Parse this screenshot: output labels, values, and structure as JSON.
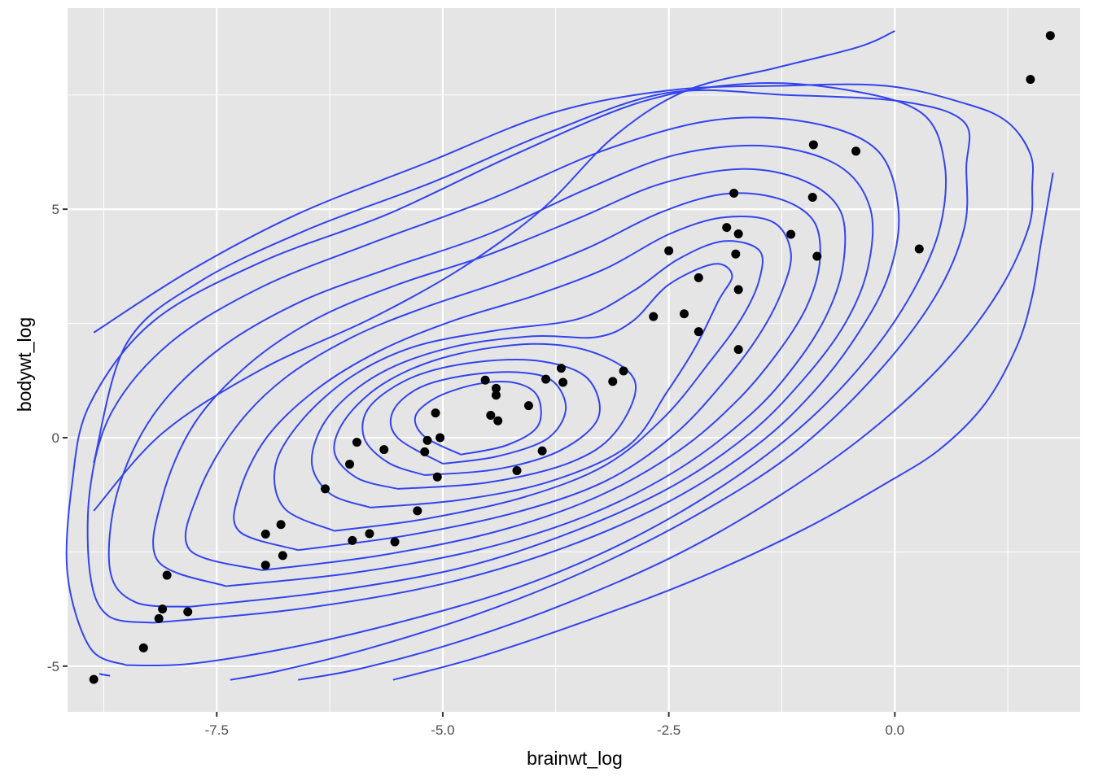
{
  "chart_data": {
    "type": "scatter",
    "title": "",
    "xlabel": "brainwt_log",
    "ylabel": "bodywt_log",
    "xlim": [
      -9.15,
      2.05
    ],
    "ylim": [
      -6.0,
      9.4
    ],
    "x_ticks": [
      {
        "value": -7.5,
        "label": "-7.5"
      },
      {
        "value": -5.0,
        "label": "-5.0"
      },
      {
        "value": -2.5,
        "label": "-2.5"
      },
      {
        "value": 0.0,
        "label": "0.0"
      }
    ],
    "y_ticks": [
      {
        "value": -5,
        "label": "-5"
      },
      {
        "value": 0,
        "label": "0"
      },
      {
        "value": 5,
        "label": "5"
      }
    ],
    "grid": true,
    "legend": "none",
    "colors": {
      "panel": "#e5e5e5",
      "grid": "#ffffff",
      "points": "#000000",
      "contours": "#3344ee"
    },
    "points": [
      {
        "x": -8.86,
        "y": -5.29
      },
      {
        "x": -8.31,
        "y": -4.6
      },
      {
        "x": -8.14,
        "y": -3.96
      },
      {
        "x": -8.1,
        "y": -3.75
      },
      {
        "x": -8.05,
        "y": -3.01
      },
      {
        "x": -7.82,
        "y": -3.81
      },
      {
        "x": -6.96,
        "y": -2.11
      },
      {
        "x": -6.96,
        "y": -2.79
      },
      {
        "x": -6.79,
        "y": -1.9
      },
      {
        "x": -6.77,
        "y": -2.58
      },
      {
        "x": -6.3,
        "y": -1.12
      },
      {
        "x": -6.03,
        "y": -0.58
      },
      {
        "x": -6.0,
        "y": -2.25
      },
      {
        "x": -5.95,
        "y": -0.1
      },
      {
        "x": -5.81,
        "y": -2.1
      },
      {
        "x": -5.65,
        "y": -0.26
      },
      {
        "x": -5.53,
        "y": -2.28
      },
      {
        "x": -5.28,
        "y": -1.6
      },
      {
        "x": -5.2,
        "y": -0.31
      },
      {
        "x": -5.17,
        "y": -0.06
      },
      {
        "x": -5.08,
        "y": 0.54
      },
      {
        "x": -5.06,
        "y": -0.86
      },
      {
        "x": -5.03,
        "y": 0.0
      },
      {
        "x": -4.53,
        "y": 1.26
      },
      {
        "x": -4.47,
        "y": 0.49
      },
      {
        "x": -4.41,
        "y": 1.08
      },
      {
        "x": -4.41,
        "y": 0.93
      },
      {
        "x": -4.39,
        "y": 0.37
      },
      {
        "x": -4.18,
        "y": -0.72
      },
      {
        "x": -4.05,
        "y": 0.7
      },
      {
        "x": -3.9,
        "y": -0.29
      },
      {
        "x": -3.86,
        "y": 1.28
      },
      {
        "x": -3.69,
        "y": 1.52
      },
      {
        "x": -3.67,
        "y": 1.21
      },
      {
        "x": -3.12,
        "y": 1.23
      },
      {
        "x": -3.0,
        "y": 1.46
      },
      {
        "x": -2.67,
        "y": 2.65
      },
      {
        "x": -2.5,
        "y": 4.09
      },
      {
        "x": -2.33,
        "y": 2.71
      },
      {
        "x": -2.17,
        "y": 3.5
      },
      {
        "x": -2.17,
        "y": 2.32
      },
      {
        "x": -1.86,
        "y": 4.6
      },
      {
        "x": -1.78,
        "y": 5.35
      },
      {
        "x": -1.76,
        "y": 4.02
      },
      {
        "x": -1.73,
        "y": 4.46
      },
      {
        "x": -1.73,
        "y": 3.24
      },
      {
        "x": -1.73,
        "y": 1.93
      },
      {
        "x": -1.15,
        "y": 4.45
      },
      {
        "x": -0.9,
        "y": 6.41
      },
      {
        "x": -0.91,
        "y": 5.26
      },
      {
        "x": -0.86,
        "y": 3.97
      },
      {
        "x": -0.43,
        "y": 6.27
      },
      {
        "x": 0.27,
        "y": 4.13
      },
      {
        "x": 1.5,
        "y": 7.84
      },
      {
        "x": 1.72,
        "y": 8.8
      }
    ],
    "contours": [
      [
        [
          -4.8,
          -0.37
        ],
        [
          -4.3,
          -0.17
        ],
        [
          -3.95,
          0.25
        ],
        [
          -3.95,
          0.9
        ],
        [
          -4.2,
          1.2
        ],
        [
          -4.6,
          1.18
        ],
        [
          -5.05,
          0.9
        ],
        [
          -5.3,
          0.48
        ],
        [
          -5.2,
          0.02
        ],
        [
          -4.8,
          -0.37
        ]
      ],
      [
        [
          -5.0,
          -0.57
        ],
        [
          -4.4,
          -0.41
        ],
        [
          -3.85,
          -0.03
        ],
        [
          -3.64,
          0.61
        ],
        [
          -3.78,
          1.23
        ],
        [
          -4.15,
          1.43
        ],
        [
          -4.72,
          1.37
        ],
        [
          -5.25,
          1.1
        ],
        [
          -5.55,
          0.58
        ],
        [
          -5.5,
          0.0
        ],
        [
          -5.0,
          -0.57
        ]
      ],
      [
        [
          -5.2,
          -0.82
        ],
        [
          -4.4,
          -0.69
        ],
        [
          -3.7,
          -0.28
        ],
        [
          -3.28,
          0.44
        ],
        [
          -3.4,
          1.3
        ],
        [
          -3.9,
          1.67
        ],
        [
          -4.6,
          1.66
        ],
        [
          -5.3,
          1.35
        ],
        [
          -5.8,
          0.7
        ],
        [
          -5.87,
          0.0
        ],
        [
          -5.6,
          -0.55
        ],
        [
          -5.2,
          -0.82
        ]
      ],
      [
        [
          -5.5,
          -1.12
        ],
        [
          -4.5,
          -0.98
        ],
        [
          -3.6,
          -0.55
        ],
        [
          -3.1,
          0.1
        ],
        [
          -2.87,
          1.2
        ],
        [
          -3.3,
          1.84
        ],
        [
          -4.0,
          2.05
        ],
        [
          -4.9,
          1.8
        ],
        [
          -5.6,
          1.25
        ],
        [
          -6.05,
          0.48
        ],
        [
          -6.2,
          -0.3
        ],
        [
          -5.95,
          -0.88
        ],
        [
          -5.5,
          -1.12
        ]
      ],
      [
        [
          -5.8,
          -1.53
        ],
        [
          -4.8,
          -1.36
        ],
        [
          -3.8,
          -0.95
        ],
        [
          -2.95,
          -0.18
        ],
        [
          -2.52,
          1.0
        ],
        [
          -2.2,
          2.0
        ],
        [
          -1.95,
          3.0
        ],
        [
          -1.8,
          3.55
        ],
        [
          -2.0,
          3.8
        ],
        [
          -2.5,
          3.35
        ],
        [
          -2.9,
          2.55
        ],
        [
          -3.3,
          2.2
        ],
        [
          -4.0,
          2.22
        ],
        [
          -4.9,
          1.98
        ],
        [
          -5.7,
          1.4
        ],
        [
          -6.25,
          0.5
        ],
        [
          -6.45,
          -0.5
        ],
        [
          -6.25,
          -1.22
        ],
        [
          -5.8,
          -1.53
        ]
      ],
      [
        [
          -6.2,
          -2.04
        ],
        [
          -5.2,
          -1.78
        ],
        [
          -4.1,
          -1.3
        ],
        [
          -3.2,
          -0.6
        ],
        [
          -2.55,
          0.45
        ],
        [
          -2.05,
          1.65
        ],
        [
          -1.7,
          2.6
        ],
        [
          -1.5,
          3.45
        ],
        [
          -1.5,
          4.1
        ],
        [
          -1.9,
          4.3
        ],
        [
          -2.4,
          3.9
        ],
        [
          -2.9,
          3.2
        ],
        [
          -3.5,
          2.6
        ],
        [
          -4.4,
          2.35
        ],
        [
          -5.3,
          2.0
        ],
        [
          -6.0,
          1.35
        ],
        [
          -6.55,
          0.4
        ],
        [
          -6.85,
          -0.6
        ],
        [
          -6.75,
          -1.55
        ],
        [
          -6.2,
          -2.04
        ]
      ],
      [
        [
          -6.6,
          -2.46
        ],
        [
          -5.4,
          -2.14
        ],
        [
          -4.2,
          -1.64
        ],
        [
          -3.2,
          -0.95
        ],
        [
          -2.45,
          0.05
        ],
        [
          -1.9,
          1.2
        ],
        [
          -1.5,
          2.25
        ],
        [
          -1.25,
          3.2
        ],
        [
          -1.15,
          4.05
        ],
        [
          -1.35,
          4.72
        ],
        [
          -1.9,
          4.82
        ],
        [
          -2.5,
          4.45
        ],
        [
          -3.2,
          3.7
        ],
        [
          -4.0,
          3.1
        ],
        [
          -4.9,
          2.55
        ],
        [
          -5.7,
          1.9
        ],
        [
          -6.4,
          1.05
        ],
        [
          -6.95,
          0.0
        ],
        [
          -7.25,
          -1.2
        ],
        [
          -7.25,
          -2.05
        ],
        [
          -6.6,
          -2.46
        ]
      ],
      [
        [
          -7.0,
          -2.9
        ],
        [
          -5.7,
          -2.58
        ],
        [
          -4.4,
          -2.05
        ],
        [
          -3.3,
          -1.3
        ],
        [
          -2.4,
          -0.3
        ],
        [
          -1.75,
          0.8
        ],
        [
          -1.3,
          1.85
        ],
        [
          -0.98,
          2.85
        ],
        [
          -0.83,
          3.85
        ],
        [
          -0.9,
          4.75
        ],
        [
          -1.3,
          5.24
        ],
        [
          -1.9,
          5.33
        ],
        [
          -2.6,
          4.92
        ],
        [
          -3.4,
          4.15
        ],
        [
          -4.3,
          3.45
        ],
        [
          -5.2,
          2.85
        ],
        [
          -6.0,
          2.2
        ],
        [
          -6.75,
          1.3
        ],
        [
          -7.3,
          0.2
        ],
        [
          -7.7,
          -1.2
        ],
        [
          -7.8,
          -2.45
        ],
        [
          -7.0,
          -2.9
        ]
      ],
      [
        [
          -7.4,
          -3.25
        ],
        [
          -6.0,
          -2.96
        ],
        [
          -4.6,
          -2.45
        ],
        [
          -3.4,
          -1.7
        ],
        [
          -2.4,
          -0.7
        ],
        [
          -1.6,
          0.5
        ],
        [
          -1.1,
          1.6
        ],
        [
          -0.75,
          2.7
        ],
        [
          -0.57,
          3.8
        ],
        [
          -0.6,
          4.95
        ],
        [
          -1.0,
          5.62
        ],
        [
          -1.7,
          5.88
        ],
        [
          -2.6,
          5.55
        ],
        [
          -3.5,
          4.8
        ],
        [
          -4.5,
          4.0
        ],
        [
          -5.5,
          3.35
        ],
        [
          -6.4,
          2.6
        ],
        [
          -7.15,
          1.6
        ],
        [
          -7.75,
          0.3
        ],
        [
          -8.1,
          -1.3
        ],
        [
          -8.15,
          -2.7
        ],
        [
          -7.4,
          -3.25
        ]
      ],
      [
        [
          -7.8,
          -3.7
        ],
        [
          -6.3,
          -3.38
        ],
        [
          -4.8,
          -2.85
        ],
        [
          -3.55,
          -2.05
        ],
        [
          -2.45,
          -1.05
        ],
        [
          -1.6,
          0.1
        ],
        [
          -1.0,
          1.3
        ],
        [
          -0.55,
          2.5
        ],
        [
          -0.3,
          3.7
        ],
        [
          -0.27,
          5.0
        ],
        [
          -0.62,
          5.95
        ],
        [
          -1.4,
          6.38
        ],
        [
          -2.4,
          6.2
        ],
        [
          -3.4,
          5.45
        ],
        [
          -4.5,
          4.45
        ],
        [
          -5.6,
          3.7
        ],
        [
          -6.6,
          2.95
        ],
        [
          -7.5,
          1.9
        ],
        [
          -8.2,
          0.5
        ],
        [
          -8.6,
          -1.2
        ],
        [
          -8.68,
          -2.9
        ],
        [
          -8.4,
          -3.6
        ],
        [
          -7.8,
          -3.7
        ]
      ],
      [
        [
          -8.2,
          -4.05
        ],
        [
          -6.6,
          -3.75
        ],
        [
          -5.0,
          -3.2
        ],
        [
          -3.65,
          -2.4
        ],
        [
          -2.5,
          -1.4
        ],
        [
          -1.55,
          -0.2
        ],
        [
          -0.9,
          1.0
        ],
        [
          -0.4,
          2.3
        ],
        [
          -0.06,
          3.6
        ],
        [
          0.04,
          5.0
        ],
        [
          -0.2,
          6.3
        ],
        [
          -0.95,
          6.9
        ],
        [
          -2.0,
          6.95
        ],
        [
          -3.2,
          6.3
        ],
        [
          -4.5,
          5.2
        ],
        [
          -5.8,
          4.25
        ],
        [
          -7.0,
          3.3
        ],
        [
          -8.0,
          2.1
        ],
        [
          -8.65,
          0.6
        ],
        [
          -8.9,
          -1.1
        ],
        [
          -8.9,
          -3.0
        ],
        [
          -8.7,
          -3.9
        ],
        [
          -8.2,
          -4.05
        ]
      ],
      [
        [
          -8.8,
          -5.17
        ],
        [
          -8.68,
          -5.21
        ]
      ],
      [
        [
          -8.5,
          -4.98
        ],
        [
          -7.8,
          -4.95
        ],
        [
          -6.7,
          -4.6
        ],
        [
          -5.5,
          -4.05
        ],
        [
          -4.2,
          -3.3
        ],
        [
          -3.0,
          -2.3
        ],
        [
          -1.9,
          -1.05
        ],
        [
          -1.0,
          0.3
        ],
        [
          -0.3,
          1.75
        ],
        [
          0.2,
          3.2
        ],
        [
          0.5,
          4.6
        ],
        [
          0.55,
          6.0
        ],
        [
          0.3,
          7.1
        ],
        [
          -0.5,
          7.6
        ],
        [
          -1.6,
          7.75
        ],
        [
          -2.8,
          7.35
        ],
        [
          -4.2,
          6.2
        ],
        [
          -5.6,
          4.9
        ],
        [
          -7.0,
          3.85
        ],
        [
          -8.2,
          2.55
        ],
        [
          -8.9,
          0.75
        ],
        [
          -9.1,
          -1.0
        ],
        [
          -9.15,
          -3.0
        ],
        [
          -8.9,
          -4.6
        ],
        [
          -8.5,
          -4.98
        ]
      ],
      [
        [
          -7.35,
          -5.3
        ],
        [
          -6.8,
          -5.1
        ],
        [
          -5.8,
          -4.6
        ],
        [
          -4.6,
          -3.85
        ],
        [
          -3.4,
          -2.9
        ],
        [
          -2.2,
          -1.7
        ],
        [
          -1.1,
          -0.3
        ],
        [
          -0.2,
          1.4
        ],
        [
          0.45,
          3.1
        ],
        [
          0.77,
          4.6
        ],
        [
          0.79,
          5.9
        ],
        [
          0.77,
          6.9
        ],
        [
          0.1,
          7.35
        ],
        [
          -1.2,
          7.5
        ],
        [
          -2.5,
          7.55
        ],
        [
          -3.8,
          6.7
        ],
        [
          -5.1,
          5.6
        ],
        [
          -6.5,
          4.55
        ],
        [
          -7.7,
          3.4
        ],
        [
          -8.5,
          2.05
        ],
        [
          -8.86,
          -0.55
        ]
      ],
      [
        [
          -8.86,
          -1.6
        ],
        [
          -8.1,
          0.1
        ],
        [
          -7.0,
          1.5
        ],
        [
          -5.8,
          2.6
        ],
        [
          -4.8,
          3.7
        ],
        [
          -3.9,
          5.0
        ],
        [
          -3.1,
          6.6
        ],
        [
          -2.3,
          7.6
        ],
        [
          -1.3,
          8.1
        ],
        [
          -0.4,
          8.55
        ],
        [
          0.0,
          8.9
        ]
      ],
      [
        [
          -6.6,
          -5.3
        ],
        [
          -5.9,
          -5.05
        ],
        [
          -4.8,
          -4.45
        ],
        [
          -3.6,
          -3.6
        ],
        [
          -2.4,
          -2.55
        ],
        [
          -1.3,
          -1.3
        ],
        [
          -0.3,
          0.1
        ],
        [
          0.55,
          1.65
        ],
        [
          1.15,
          3.2
        ],
        [
          1.48,
          4.6
        ],
        [
          1.52,
          5.5
        ],
        [
          1.5,
          6.2
        ],
        [
          1.25,
          6.9
        ],
        [
          0.8,
          7.3
        ],
        [
          -0.1,
          7.7
        ],
        [
          -1.3,
          7.7
        ],
        [
          -2.5,
          7.6
        ],
        [
          -3.8,
          7.1
        ],
        [
          -5.2,
          6.0
        ],
        [
          -6.6,
          4.9
        ],
        [
          -7.8,
          3.65
        ],
        [
          -8.86,
          2.3
        ]
      ],
      [
        [
          -5.55,
          -5.3
        ],
        [
          -4.6,
          -4.8
        ],
        [
          -3.4,
          -4.0
        ],
        [
          -2.2,
          -3.1
        ],
        [
          -1.0,
          -2.0
        ],
        [
          -0.1,
          -1.0
        ],
        [
          0.5,
          -0.25
        ],
        [
          1.0,
          0.75
        ],
        [
          1.35,
          2.0
        ],
        [
          1.52,
          3.1
        ],
        [
          1.62,
          4.3
        ],
        [
          1.75,
          5.8
        ]
      ]
    ]
  }
}
